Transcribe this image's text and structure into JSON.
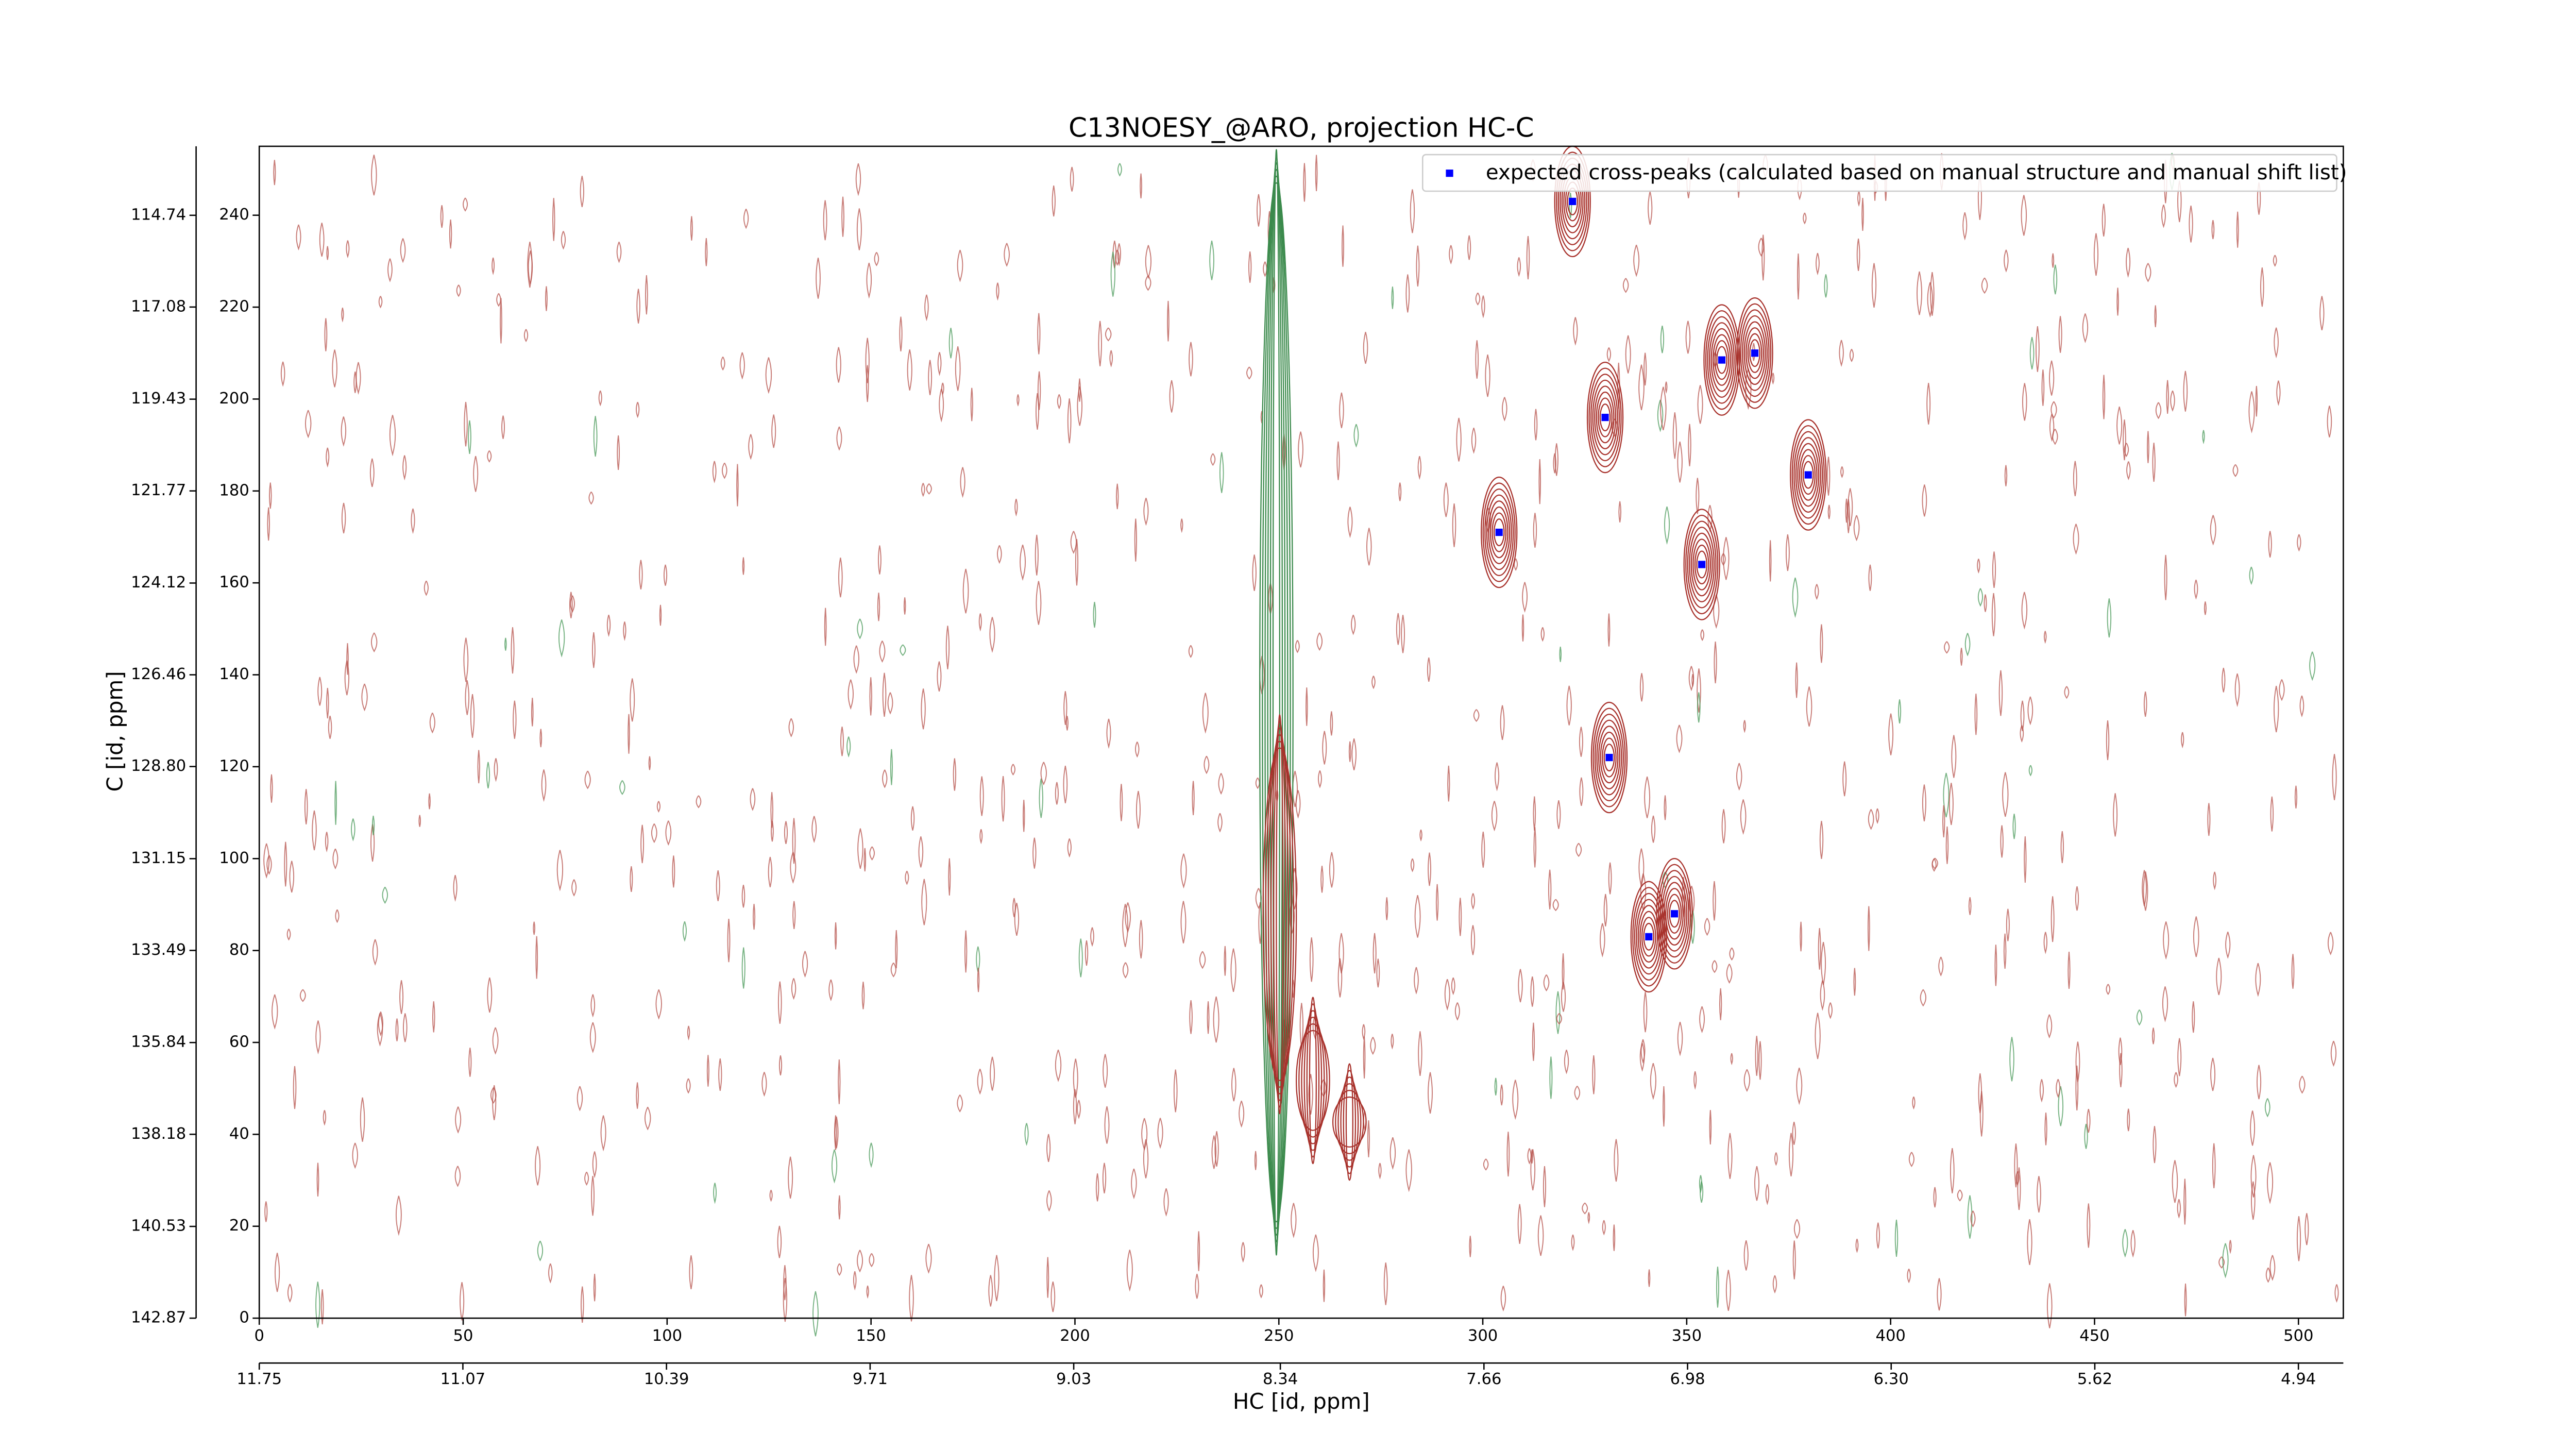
{
  "chart_data": {
    "type": "scatter",
    "title": "C13NOESY_@ARO, projection HC-C",
    "x_label": "HC [id, ppm]",
    "y_label": "C [id, ppm]",
    "xlim": [
      0,
      511
    ],
    "ylim": [
      0,
      255
    ],
    "xticks": [
      0,
      50,
      100,
      150,
      200,
      250,
      300,
      350,
      400,
      450,
      500
    ],
    "yticks": [
      0,
      20,
      40,
      60,
      80,
      100,
      120,
      140,
      160,
      180,
      200,
      220,
      240
    ],
    "x2lim": [
      11.75,
      4.79
    ],
    "x2ticks": [
      11.75,
      11.07,
      10.39,
      9.71,
      9.03,
      8.34,
      7.66,
      6.98,
      {
        "value": 6.3,
        "label": "6.30"
      },
      5.62,
      4.94
    ],
    "y2lim": [
      142.87,
      112.98
    ],
    "y2ticks": [
      142.87,
      140.53,
      138.18,
      135.84,
      133.49,
      131.15,
      {
        "value": 128.8,
        "label": "128.80"
      },
      126.46,
      124.12,
      121.77,
      119.43,
      117.08,
      114.74
    ],
    "legend": "upper right",
    "series": [
      {
        "name": "expected cross-peaks (calculated based on manual structure and manual shift list)",
        "color": "#0000ff",
        "x": [
          322,
          330,
          358.6,
          366.7,
          379.8,
          304,
          353.7,
          331,
          347,
          340.7
        ],
        "values": [
          243,
          196,
          208.5,
          210,
          183.5,
          171,
          164,
          122,
          88,
          83
        ]
      }
    ]
  }
}
